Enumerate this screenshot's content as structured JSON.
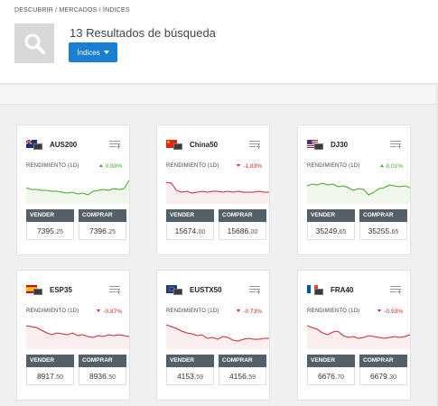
{
  "breadcrumb": {
    "discover": "DESCUBRIR",
    "sep1": " / ",
    "markets": "MERCADOS",
    "sep2": " / ",
    "indices": "ÍNDICES"
  },
  "header": {
    "results_title": "13 Resultados de búsqueda",
    "filter_label": "Índices"
  },
  "colors": {
    "accent": "#1a7fd2",
    "up": "#44a422",
    "down": "#d0242c",
    "button": "#535f69"
  },
  "cards": [
    {
      "symbol": "AUS200",
      "flag": "australia-flag-icon",
      "perf_label": "RENDIMIENTO (1D)",
      "change": "0.50%",
      "direction": "up",
      "sell_label": "VENDER",
      "buy_label": "COMPRAR",
      "sell_main": "7395.",
      "sell_dec": "25",
      "buy_main": "7396.",
      "buy_dec": "25"
    },
    {
      "symbol": "China50",
      "flag": "china-flag-icon",
      "perf_label": "RENDIMIENTO (1D)",
      "change": "-1.83%",
      "direction": "down",
      "sell_label": "VENDER",
      "buy_label": "COMPRAR",
      "sell_main": "15674.",
      "sell_dec": "00",
      "buy_main": "15686.",
      "buy_dec": "00"
    },
    {
      "symbol": "DJ30",
      "flag": "usa-flag-icon",
      "perf_label": "RENDIMIENTO (1D)",
      "change": "0.01%",
      "direction": "up",
      "sell_label": "VENDER",
      "buy_label": "COMPRAR",
      "sell_main": "35249.",
      "sell_dec": "65",
      "buy_main": "35255.",
      "buy_dec": "65"
    },
    {
      "symbol": "ESP35",
      "flag": "spain-flag-icon",
      "perf_label": "RENDIMIENTO (1D)",
      "change": "-0.87%",
      "direction": "down",
      "sell_label": "VENDER",
      "buy_label": "COMPRAR",
      "sell_main": "8917.",
      "sell_dec": "50",
      "buy_main": "8936.",
      "buy_dec": "50"
    },
    {
      "symbol": "EUSTX50",
      "flag": "eu-flag-icon",
      "perf_label": "RENDIMIENTO (1D)",
      "change": "-0.73%",
      "direction": "down",
      "sell_label": "VENDER",
      "buy_label": "COMPRAR",
      "sell_main": "4153.",
      "sell_dec": "59",
      "buy_main": "4156.",
      "buy_dec": "59"
    },
    {
      "symbol": "FRA40",
      "flag": "france-flag-icon",
      "perf_label": "RENDIMIENTO (1D)",
      "change": "-0.93%",
      "direction": "down",
      "sell_label": "VENDER",
      "buy_label": "COMPRAR",
      "sell_main": "6676.",
      "sell_dec": "70",
      "buy_main": "6679.",
      "buy_dec": "30"
    }
  ]
}
